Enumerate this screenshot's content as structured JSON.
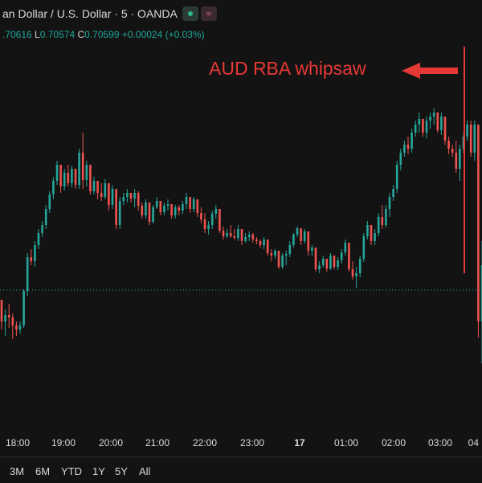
{
  "header": {
    "title": "an Dollar / U.S. Dollar · 5 · OANDA",
    "wave_icon_glyph": "≈",
    "ohlc_pre": ".70616",
    "l_key": "L",
    "l_val": "0.70574",
    "c_key": "C",
    "c_val": "0.70599",
    "change": "+0.00024 (+0.03%)"
  },
  "annotation": {
    "text": "AUD RBA whipsaw",
    "color": "#e53935",
    "icon": "arrow-left-icon"
  },
  "range_buttons": [
    "3M",
    "6M",
    "YTD",
    "1Y",
    "5Y",
    "All"
  ],
  "colors": {
    "background": "#131313",
    "up": "#26a69a",
    "down": "#ef5350",
    "annotation": "#e53935",
    "axis_text": "#d9d9d9",
    "baseline": "#26a69a"
  },
  "chart_data": {
    "type": "candlestick",
    "title": "an Dollar / U.S. Dollar · 5 · OANDA",
    "x_tick_labels": [
      "18:00",
      "19:00",
      "20:00",
      "21:00",
      "22:00",
      "23:00",
      "17",
      "01:00",
      "02:00",
      "03:00",
      "04"
    ],
    "series": [
      {
        "name": "",
        "candles": [
          [
            373,
            380,
            410,
            400
          ],
          [
            400,
            385,
            418,
            392
          ],
          [
            392,
            378,
            408,
            395
          ],
          [
            395,
            390,
            422,
            405
          ],
          [
            405,
            400,
            418,
            410
          ],
          [
            410,
            400,
            415,
            405
          ],
          [
            405,
            360,
            408,
            362
          ],
          [
            362,
            315,
            368,
            320
          ],
          [
            320,
            310,
            330,
            325
          ],
          [
            325,
            300,
            332,
            305
          ],
          [
            305,
            285,
            310,
            290
          ],
          [
            290,
            275,
            295,
            280
          ],
          [
            280,
            255,
            285,
            260
          ],
          [
            260,
            238,
            265,
            242
          ],
          [
            242,
            220,
            248,
            225
          ],
          [
            225,
            200,
            230,
            205
          ],
          [
            205,
            205,
            240,
            232
          ],
          [
            232,
            210,
            237,
            215
          ],
          [
            215,
            205,
            232,
            228
          ],
          [
            228,
            206,
            233,
            210
          ],
          [
            210,
            212,
            235,
            230
          ],
          [
            230,
            185,
            235,
            190
          ],
          [
            190,
            165,
            235,
            224
          ],
          [
            224,
            200,
            232,
            205
          ],
          [
            205,
            230,
            242,
            238
          ],
          [
            238,
            220,
            242,
            225
          ],
          [
            225,
            235,
            248,
            240
          ],
          [
            240,
            228,
            250,
            245
          ],
          [
            245,
            223,
            248,
            228
          ],
          [
            228,
            232,
            262,
            255
          ],
          [
            255,
            230,
            260,
            235
          ],
          [
            235,
            262,
            285,
            280
          ],
          [
            280,
            245,
            285,
            250
          ],
          [
            250,
            240,
            255,
            245
          ],
          [
            245,
            235,
            252,
            240
          ],
          [
            240,
            240,
            252,
            247
          ],
          [
            247,
            235,
            258,
            240
          ],
          [
            240,
            238,
            262,
            256
          ],
          [
            256,
            252,
            272,
            268
          ],
          [
            268,
            248,
            272,
            252
          ],
          [
            252,
            262,
            280,
            276
          ],
          [
            276,
            255,
            278,
            258
          ],
          [
            258,
            245,
            260,
            250
          ],
          [
            250,
            262,
            268,
            264
          ],
          [
            264,
            252,
            268,
            256
          ],
          [
            256,
            248,
            262,
            254
          ],
          [
            254,
            256,
            272,
            268
          ],
          [
            268,
            255,
            272,
            258
          ],
          [
            258,
            255,
            268,
            262
          ],
          [
            262,
            250,
            266,
            254
          ],
          [
            254,
            240,
            260,
            245
          ],
          [
            245,
            252,
            265,
            260
          ],
          [
            260,
            245,
            264,
            248
          ],
          [
            248,
            255,
            270,
            265
          ],
          [
            265,
            258,
            278,
            273
          ],
          [
            273,
            265,
            290,
            285
          ],
          [
            285,
            275,
            292,
            280
          ],
          [
            280,
            262,
            285,
            266
          ],
          [
            266,
            255,
            272,
            260
          ],
          [
            260,
            280,
            290,
            287
          ],
          [
            287,
            282,
            298,
            294
          ],
          [
            294,
            285,
            296,
            290
          ],
          [
            290,
            280,
            296,
            294
          ],
          [
            294,
            285,
            298,
            296
          ],
          [
            296,
            280,
            300,
            285
          ],
          [
            285,
            288,
            305,
            300
          ],
          [
            300,
            290,
            302,
            295
          ],
          [
            295,
            288,
            300,
            292
          ],
          [
            292,
            290,
            302,
            298
          ],
          [
            298,
            295,
            304,
            300
          ],
          [
            300,
            298,
            308,
            305
          ],
          [
            305,
            295,
            310,
            298
          ],
          [
            298,
            300,
            318,
            315
          ],
          [
            315,
            310,
            325,
            318
          ],
          [
            318,
            310,
            322,
            312
          ],
          [
            312,
            320,
            335,
            332
          ],
          [
            332,
            315,
            335,
            318
          ],
          [
            318,
            312,
            330,
            316
          ],
          [
            316,
            300,
            320,
            305
          ],
          [
            305,
            290,
            308,
            292
          ],
          [
            292,
            282,
            295,
            284
          ],
          [
            284,
            286,
            305,
            300
          ],
          [
            300,
            285,
            303,
            288
          ],
          [
            288,
            292,
            318,
            312
          ],
          [
            312,
            305,
            318,
            308
          ],
          [
            308,
            320,
            338,
            335
          ],
          [
            335,
            325,
            340,
            330
          ],
          [
            330,
            318,
            333,
            322
          ],
          [
            322,
            325,
            338,
            334
          ],
          [
            334,
            315,
            336,
            318
          ],
          [
            318,
            318,
            335,
            332
          ],
          [
            332,
            320,
            336,
            324
          ],
          [
            324,
            310,
            328,
            314
          ],
          [
            314,
            298,
            318,
            302
          ],
          [
            302,
            315,
            338,
            335
          ],
          [
            335,
            325,
            348,
            344
          ],
          [
            344,
            332,
            358,
            340
          ],
          [
            340,
            318,
            345,
            322
          ],
          [
            322,
            290,
            326,
            294
          ],
          [
            294,
            275,
            298,
            280
          ],
          [
            280,
            280,
            305,
            300
          ],
          [
            300,
            285,
            305,
            290
          ],
          [
            290,
            265,
            294,
            270
          ],
          [
            270,
            255,
            285,
            280
          ],
          [
            280,
            255,
            283,
            260
          ],
          [
            260,
            240,
            270,
            245
          ],
          [
            245,
            230,
            250,
            235
          ],
          [
            235,
            200,
            240,
            205
          ],
          [
            205,
            185,
            212,
            190
          ],
          [
            190,
            175,
            195,
            180
          ],
          [
            180,
            170,
            192,
            185
          ],
          [
            185,
            160,
            190,
            165
          ],
          [
            165,
            150,
            170,
            155
          ],
          [
            155,
            140,
            165,
            148
          ],
          [
            148,
            148,
            170,
            165
          ],
          [
            165,
            145,
            172,
            150
          ],
          [
            150,
            140,
            160,
            145
          ],
          [
            145,
            135,
            155,
            140
          ],
          [
            140,
            140,
            165,
            162
          ],
          [
            162,
            140,
            168,
            145
          ],
          [
            145,
            150,
            180,
            175
          ],
          [
            175,
            170,
            192,
            185
          ],
          [
            185,
            180,
            195,
            190
          ],
          [
            190,
            175,
            215,
            210
          ],
          [
            210,
            180,
            225,
            185
          ],
          [
            185,
            165,
            190,
            170
          ],
          [
            170,
            150,
            175,
            155
          ],
          [
            155,
            150,
            195,
            190
          ],
          [
            190,
            150,
            200,
            155
          ],
          [
            155,
            160,
            420,
            400
          ],
          [
            400,
            300,
            452,
            330
          ],
          [
            330,
            330,
            445,
            440
          ],
          [
            440,
            350,
            450,
            355
          ],
          [
            355,
            340,
            370,
            345
          ]
        ]
      }
    ]
  }
}
